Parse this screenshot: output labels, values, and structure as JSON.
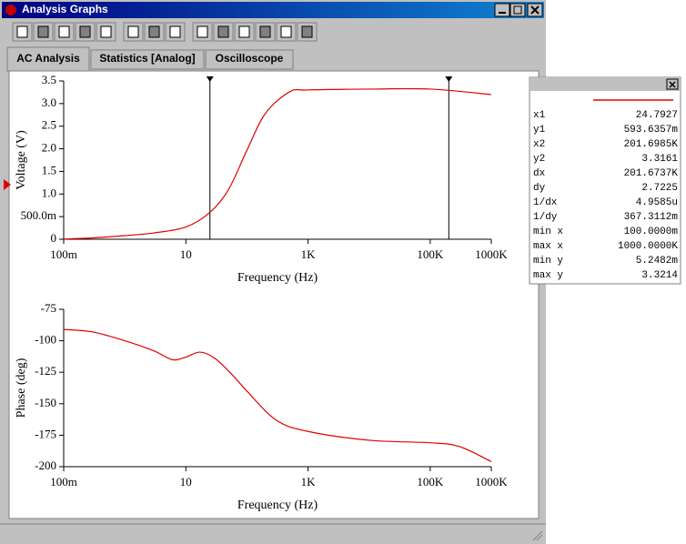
{
  "window": {
    "title": "Analysis Graphs"
  },
  "tabs": [
    "AC Analysis",
    "Statistics [Analog]",
    "Oscilloscope"
  ],
  "graphs": [
    {
      "type": "line",
      "ylabel": "Voltage (V)",
      "xlabel": "Frequency (Hz)",
      "x_scale": "log",
      "xlim": [
        0.1,
        1000000
      ],
      "xticks": [
        {
          "value": 0.1,
          "label": "100m"
        },
        10,
        {
          "value": 1000,
          "label": "1K"
        },
        {
          "value": 100000,
          "label": "100K"
        },
        {
          "value": 1000000,
          "label": "1000K"
        }
      ],
      "ylim": [
        0,
        3.5
      ],
      "yticks": [
        0,
        {
          "value": 0.5,
          "label": "500.0m"
        },
        {
          "value": 1,
          "label": "1.0"
        },
        1.5,
        {
          "value": 2,
          "label": "2.0"
        },
        2.5,
        {
          "value": 3,
          "label": "3.0"
        },
        3.5
      ],
      "cursors": [
        24.7927,
        201698.5
      ],
      "series": [
        {
          "color": "#e00000",
          "x": [
            0.1,
            0.3,
            1,
            3,
            10,
            24.7927,
            50,
            100,
            200,
            500,
            1000,
            10000,
            100000,
            1000000
          ],
          "values": [
            0.005,
            0.03,
            0.08,
            0.14,
            0.27,
            0.594,
            1.1,
            1.97,
            2.78,
            3.26,
            3.3,
            3.32,
            3.32,
            3.2
          ]
        }
      ]
    },
    {
      "type": "line",
      "ylabel": "Phase (deg)",
      "xlabel": "Frequency (Hz)",
      "x_scale": "log",
      "xlim": [
        0.1,
        1000000
      ],
      "xticks": [
        {
          "value": 0.1,
          "label": "100m"
        },
        10,
        {
          "value": 1000,
          "label": "1K"
        },
        {
          "value": 100000,
          "label": "100K"
        },
        {
          "value": 1000000,
          "label": "1000K"
        }
      ],
      "ylim": [
        -200,
        -75
      ],
      "yticks": [
        -75,
        -100,
        -125,
        -150,
        -175,
        -200
      ],
      "series": [
        {
          "color": "#e00000",
          "x": [
            0.1,
            0.3,
            1,
            3,
            6,
            10,
            17,
            30,
            60,
            100,
            300,
            1000,
            10000,
            100000,
            300000,
            1000000
          ],
          "values": [
            -91,
            -93,
            -100,
            -108,
            -115,
            -113,
            -109,
            -114,
            -128,
            -140,
            -163,
            -172,
            -179,
            -181,
            -184,
            -196
          ]
        }
      ]
    }
  ],
  "cursor_readout": {
    "rows": [
      [
        "x1",
        "24.7927"
      ],
      [
        "y1",
        "593.6357m"
      ],
      [
        "x2",
        "201.6985K"
      ],
      [
        "y2",
        "3.3161"
      ],
      [
        "dx",
        "201.6737K"
      ],
      [
        "dy",
        "2.7225"
      ],
      [
        "1/dx",
        "4.9585u"
      ],
      [
        "1/dy",
        "367.3112m"
      ],
      [
        "min x",
        "100.0000m"
      ],
      [
        "max x",
        "1000.0000K"
      ],
      [
        "min y",
        "5.2482m"
      ],
      [
        "max y",
        "3.3214"
      ]
    ]
  }
}
